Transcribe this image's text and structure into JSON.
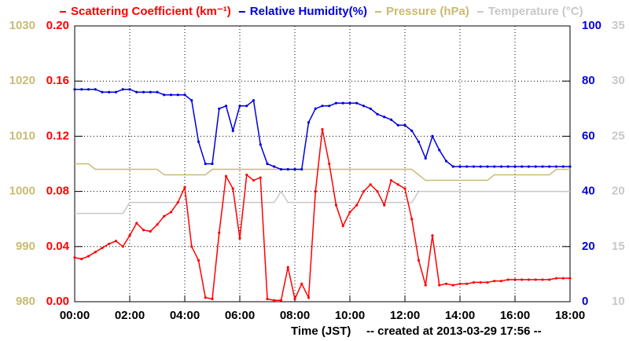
{
  "chart_data": {
    "type": "line",
    "x": [
      0,
      0.25,
      0.5,
      0.75,
      1,
      1.25,
      1.5,
      1.75,
      2,
      2.25,
      2.5,
      2.75,
      3,
      3.25,
      3.5,
      3.75,
      4,
      4.25,
      4.5,
      4.75,
      5,
      5.25,
      5.5,
      5.75,
      6,
      6.25,
      6.5,
      6.75,
      7,
      7.25,
      7.5,
      7.75,
      8,
      8.25,
      8.5,
      8.75,
      9,
      9.25,
      9.5,
      9.75,
      10,
      10.25,
      10.5,
      10.75,
      11,
      11.25,
      11.5,
      11.75,
      12,
      12.25,
      12.5,
      12.75,
      13,
      13.25,
      13.5,
      13.75,
      14,
      14.25,
      14.5,
      14.75,
      15,
      15.25,
      15.5,
      15.75,
      16,
      16.25,
      16.5,
      16.75,
      17,
      17.25,
      17.5,
      17.75,
      18
    ],
    "xlim": [
      0,
      18
    ],
    "xticks": [
      {
        "value": 0,
        "label": "00:00"
      },
      {
        "value": 2,
        "label": "02:00"
      },
      {
        "value": 4,
        "label": "04:00"
      },
      {
        "value": 6,
        "label": "06:00"
      },
      {
        "value": 8,
        "label": "08:00"
      },
      {
        "value": 10,
        "label": "10:00"
      },
      {
        "value": 12,
        "label": "12:00"
      },
      {
        "value": 14,
        "label": "14:00"
      },
      {
        "value": 16,
        "label": "16:00"
      },
      {
        "value": 18,
        "label": "18:00"
      }
    ],
    "x_label": "Time (JST)",
    "note": "-- created at 2013-03-29 17:56 --",
    "ylim": [
      0,
      0.2
    ],
    "yticks": [
      {
        "value": 0,
        "label": "0.00"
      },
      {
        "value": 0.04,
        "label": "0.04"
      },
      {
        "value": 0.08,
        "label": "0.08"
      },
      {
        "value": 0.12,
        "label": "0.12"
      },
      {
        "value": 0.16,
        "label": "0.16"
      },
      {
        "value": 0.2,
        "label": "0.20"
      }
    ],
    "y2lim": [
      0,
      100
    ],
    "y2ticks": [
      0,
      20,
      40,
      60,
      80,
      100
    ],
    "y3lim": [
      980,
      1030
    ],
    "y3ticks": [
      980,
      990,
      1000,
      1010,
      1020,
      1030
    ],
    "y4lim": [
      10,
      35
    ],
    "y4ticks": [
      10,
      15,
      20,
      25,
      30,
      35
    ],
    "grid": true,
    "series": [
      {
        "name": "Scattering Coefficient (km⁻¹)",
        "color": "#ff0000",
        "axis": "y",
        "values": [
          0.032,
          0.031,
          0.033,
          0.036,
          0.039,
          0.042,
          0.044,
          0.04,
          0.048,
          0.057,
          0.052,
          0.051,
          0.056,
          0.062,
          0.065,
          0.072,
          0.083,
          0.04,
          0.03,
          0.003,
          0.002,
          0.05,
          0.091,
          0.082,
          0.046,
          0.092,
          0.088,
          0.09,
          0.002,
          0.001,
          0.001,
          0.025,
          0.002,
          0.013,
          0.003,
          0.08,
          0.125,
          0.1,
          0.07,
          0.055,
          0.065,
          0.07,
          0.08,
          0.085,
          0.08,
          0.07,
          0.088,
          0.085,
          0.082,
          0.06,
          0.03,
          0.012,
          0.048,
          0.012,
          0.013,
          0.012,
          0.013,
          0.013,
          0.014,
          0.014,
          0.014,
          0.015,
          0.015,
          0.016,
          0.016,
          0.016,
          0.016,
          0.016,
          0.016,
          0.016,
          0.017,
          0.017,
          0.017
        ]
      },
      {
        "name": "Relative Humidity(%)",
        "color": "#0000dd",
        "axis": "y2",
        "values": [
          77,
          77,
          77,
          77,
          76,
          76,
          76,
          77,
          77,
          76,
          76,
          76,
          76,
          75,
          75,
          75,
          75,
          73,
          58,
          50,
          50,
          70,
          71,
          62,
          71,
          71,
          73,
          57,
          50,
          49,
          48,
          48,
          48,
          48,
          65,
          70,
          71,
          71,
          72,
          72,
          72,
          72,
          71,
          70,
          68,
          67,
          66,
          64,
          64,
          62,
          58,
          52,
          60,
          55,
          51,
          49,
          49,
          49,
          49,
          49,
          49,
          49,
          49,
          49,
          49,
          49,
          49,
          49,
          49,
          49,
          49,
          49,
          49
        ]
      },
      {
        "name": "Pressure (hPa)",
        "color": "#c8bb74",
        "axis": "y3",
        "values": [
          1005,
          1005,
          1005,
          1004,
          1004,
          1004,
          1004,
          1004,
          1004,
          1004,
          1004,
          1004,
          1004,
          1003,
          1003,
          1003,
          1003,
          1003,
          1003,
          1003,
          1004,
          1004,
          1004,
          1004,
          1004,
          1004,
          1004,
          1004,
          1004,
          1004,
          1004,
          1004,
          1004,
          1004,
          1004,
          1004,
          1004,
          1004,
          1004,
          1004,
          1004,
          1004,
          1004,
          1004,
          1004,
          1004,
          1004,
          1004,
          1004,
          1004,
          1003,
          1002,
          1002,
          1002,
          1002,
          1002,
          1002,
          1002,
          1002,
          1002,
          1002,
          1003,
          1003,
          1003,
          1003,
          1003,
          1003,
          1003,
          1003,
          1003,
          1004,
          1004,
          1004
        ]
      },
      {
        "name": "Temperature (°C)",
        "color": "#c8c8c8",
        "axis": "y4",
        "values": [
          18,
          18,
          18,
          18,
          18,
          18,
          18,
          18,
          19,
          19,
          19,
          19,
          19,
          19,
          19,
          19,
          19,
          19,
          19,
          19,
          19,
          19,
          19,
          19,
          19,
          19,
          19,
          19,
          19,
          19,
          20,
          19,
          19,
          19,
          19,
          19,
          19,
          19,
          19,
          19,
          19,
          19,
          19,
          19,
          19,
          19,
          19,
          19,
          19,
          19,
          20,
          20,
          20,
          20,
          20,
          20,
          20,
          20,
          20,
          20,
          20,
          20,
          20,
          20,
          20,
          20,
          20,
          20,
          20,
          20,
          20,
          20,
          20
        ]
      }
    ]
  }
}
